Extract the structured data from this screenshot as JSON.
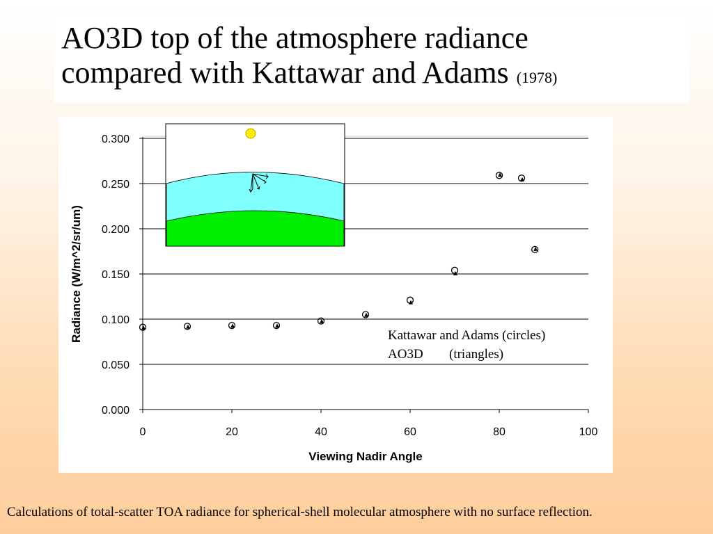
{
  "slide": {
    "title_line1": "AO3D top of the atmosphere radiance",
    "title_line2": "compared with Kattawar and Adams",
    "title_year": "(1978)",
    "caption": "Calculations of total-scatter TOA radiance for spherical-shell molecular atmosphere with no surface reflection."
  },
  "colors": {
    "sun": "#ffee00",
    "atmosphere": "#80ffff",
    "ground": "#00ee00",
    "markers": "#000000"
  },
  "chart_data": {
    "type": "scatter",
    "xlabel": "Viewing Nadir Angle",
    "ylabel": "Radiance (W/m^2/sr/um)",
    "xlim": [
      0,
      100
    ],
    "ylim": [
      0,
      0.3
    ],
    "x_ticks": [
      0,
      20,
      40,
      60,
      80,
      100
    ],
    "y_ticks": [
      "0.000",
      "0.050",
      "0.100",
      "0.150",
      "0.200",
      "0.250",
      "0.300"
    ],
    "grid": "horizontal",
    "series": [
      {
        "marker": "circle",
        "points": [
          {
            "x": 0,
            "y": 0.091
          },
          {
            "x": 10,
            "y": 0.092
          },
          {
            "x": 20,
            "y": 0.093
          },
          {
            "x": 30,
            "y": 0.093
          },
          {
            "x": 40,
            "y": 0.098
          },
          {
            "x": 50,
            "y": 0.105
          },
          {
            "x": 60,
            "y": 0.121
          },
          {
            "x": 70,
            "y": 0.154
          },
          {
            "x": 80,
            "y": 0.259
          },
          {
            "x": 85,
            "y": 0.256
          },
          {
            "x": 88,
            "y": 0.177
          }
        ]
      },
      {
        "marker": "triangle",
        "points": [
          {
            "x": 0,
            "y": 0.09
          },
          {
            "x": 10,
            "y": 0.091
          },
          {
            "x": 20,
            "y": 0.092
          },
          {
            "x": 30,
            "y": 0.092
          },
          {
            "x": 40,
            "y": 0.097
          },
          {
            "x": 50,
            "y": 0.104
          },
          {
            "x": 60,
            "y": 0.118
          },
          {
            "x": 70,
            "y": 0.15
          },
          {
            "x": 80,
            "y": 0.259
          },
          {
            "x": 85,
            "y": 0.254
          },
          {
            "x": 88,
            "y": 0.177
          }
        ]
      }
    ],
    "legend": {
      "placement": "lower-right",
      "line1": "Kattawar and Adams (circles)",
      "line2_name": "AO3D",
      "line2_marker": "(triangles)"
    }
  }
}
